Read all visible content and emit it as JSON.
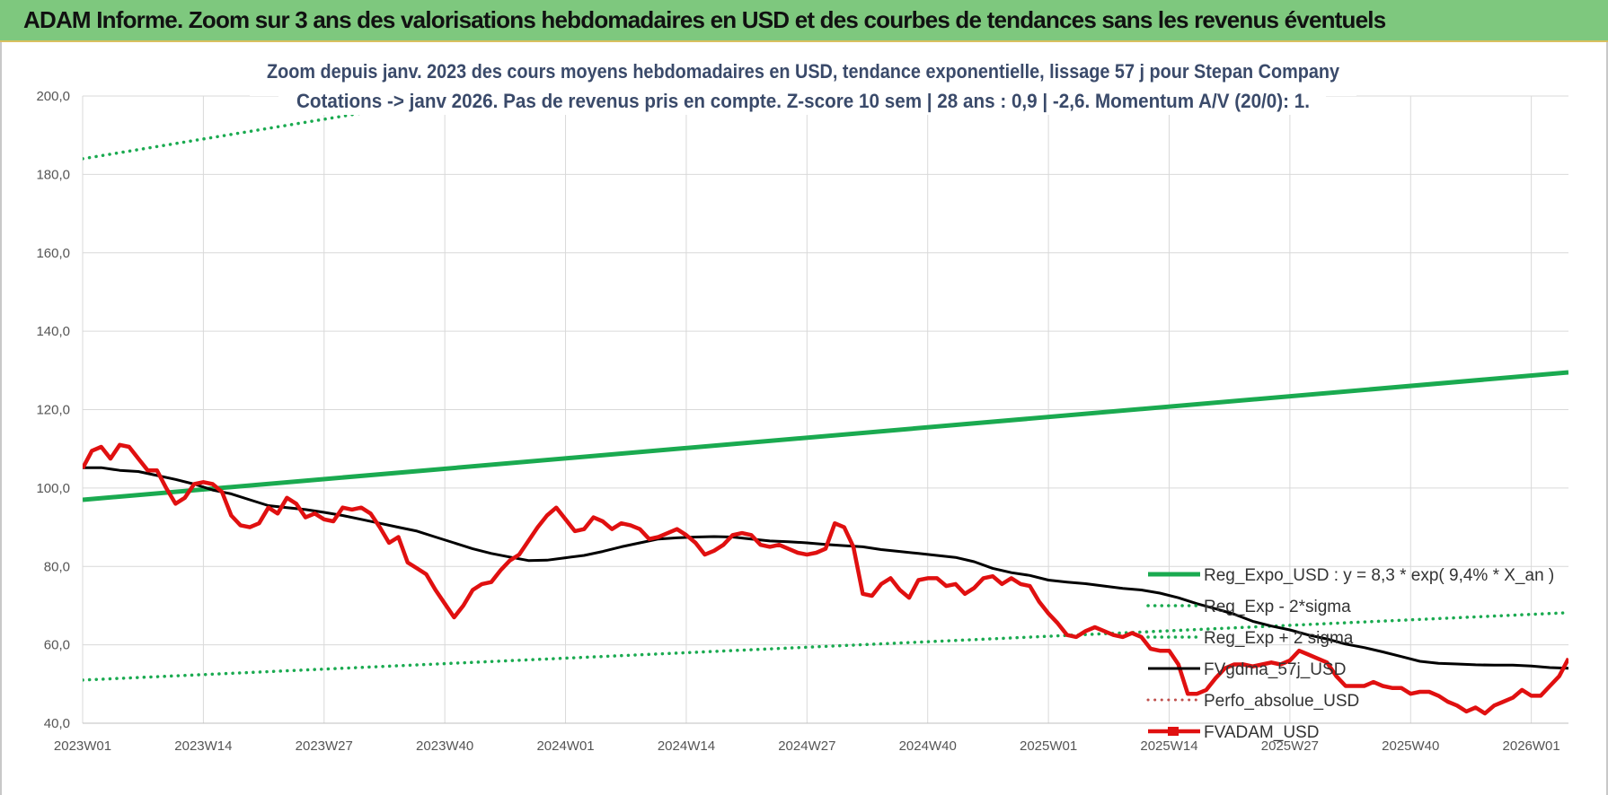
{
  "banner": {
    "title": "ADAM Informe. Zoom sur 3 ans des valorisations hebdomadaires en USD et des courbes de tendances sans les revenus éventuels"
  },
  "chart_data": {
    "type": "line",
    "title_lines": [
      "Zoom depuis janv. 2023 des cours moyens hebdomadaires en USD, tendance exponentielle, lissage 57 j pour Stepan Company",
      "Cotations -> janv 2026. Pas de revenus pris en compte. Z-score 10 sem | 28 ans : 0,9 | -2,6. Momentum A/V (20/0): 1."
    ],
    "xlabel": "",
    "ylabel": "",
    "ylim": [
      40,
      200
    ],
    "y_ticks": [
      "200,0",
      "180,0",
      "160,0",
      "140,0",
      "120,0",
      "100,0",
      "80,0",
      "60,0",
      "40,0"
    ],
    "x_week_range": [
      1,
      161
    ],
    "x_tick_labels": [
      {
        "label": "2023W01",
        "week": 1
      },
      {
        "label": "2023W14",
        "week": 14
      },
      {
        "label": "2023W27",
        "week": 27
      },
      {
        "label": "2023W40",
        "week": 40
      },
      {
        "label": "2024W01",
        "week": 53
      },
      {
        "label": "2024W14",
        "week": 66
      },
      {
        "label": "2024W27",
        "week": 79
      },
      {
        "label": "2024W40",
        "week": 92
      },
      {
        "label": "2025W01",
        "week": 105
      },
      {
        "label": "2025W14",
        "week": 118
      },
      {
        "label": "2025W27",
        "week": 131
      },
      {
        "label": "2025W40",
        "week": 144
      },
      {
        "label": "2026W01",
        "week": 157
      }
    ],
    "grid": true,
    "legend_position": "right",
    "colors": {
      "reg_expo": "#1aaa50",
      "sigma_lines": "#1aaa50",
      "fvgdma": "#000000",
      "perfo": "#c0504d",
      "fvadam": "#e01010",
      "grid": "#d9d9d9"
    },
    "series": [
      {
        "name": "Reg_Expo_USD : y = 8,3 * exp( 9,4% * X_an )",
        "style": "solid-thick",
        "points": [
          [
            1,
            97.0
          ],
          [
            161,
            129.5
          ]
        ]
      },
      {
        "name": "Reg_Exp - 2*sigma",
        "style": "dotted",
        "points": [
          [
            1,
            51.0
          ],
          [
            161,
            68.2
          ]
        ]
      },
      {
        "name": "Reg_Exp + 2 sigma",
        "style": "dotted",
        "points": [
          [
            1,
            184.0
          ],
          [
            161,
            246.0
          ]
        ]
      },
      {
        "name": "FVgdma_57j_USD",
        "style": "solid",
        "points": [
          [
            1,
            105.2
          ],
          [
            3,
            105.2
          ],
          [
            5,
            104.5
          ],
          [
            7,
            104.2
          ],
          [
            9,
            103.2
          ],
          [
            11,
            102.2
          ],
          [
            13,
            101.0
          ],
          [
            15,
            99.5
          ],
          [
            17,
            98.5
          ],
          [
            19,
            97.0
          ],
          [
            21,
            95.5
          ],
          [
            23,
            95.0
          ],
          [
            25,
            94.5
          ],
          [
            27,
            93.8
          ],
          [
            29,
            93.0
          ],
          [
            31,
            92.0
          ],
          [
            33,
            91.0
          ],
          [
            35,
            90.0
          ],
          [
            37,
            89.0
          ],
          [
            39,
            87.5
          ],
          [
            41,
            86.0
          ],
          [
            43,
            84.5
          ],
          [
            45,
            83.3
          ],
          [
            47,
            82.4
          ],
          [
            49,
            81.5
          ],
          [
            51,
            81.6
          ],
          [
            53,
            82.2
          ],
          [
            55,
            82.8
          ],
          [
            57,
            83.8
          ],
          [
            59,
            85.0
          ],
          [
            61,
            86.0
          ],
          [
            63,
            87.0
          ],
          [
            65,
            87.3
          ],
          [
            67,
            87.5
          ],
          [
            69,
            87.6
          ],
          [
            71,
            87.5
          ],
          [
            73,
            87.0
          ],
          [
            75,
            86.5
          ],
          [
            77,
            86.3
          ],
          [
            79,
            86.0
          ],
          [
            81,
            85.6
          ],
          [
            83,
            85.3
          ],
          [
            85,
            85.0
          ],
          [
            87,
            84.3
          ],
          [
            89,
            83.8
          ],
          [
            91,
            83.3
          ],
          [
            93,
            82.8
          ],
          [
            95,
            82.3
          ],
          [
            97,
            81.2
          ],
          [
            99,
            79.5
          ],
          [
            101,
            78.4
          ],
          [
            103,
            77.7
          ],
          [
            105,
            76.5
          ],
          [
            107,
            76.0
          ],
          [
            109,
            75.6
          ],
          [
            111,
            75.0
          ],
          [
            113,
            74.4
          ],
          [
            115,
            74.0
          ],
          [
            117,
            73.2
          ],
          [
            119,
            72.0
          ],
          [
            121,
            70.5
          ],
          [
            123,
            69.2
          ],
          [
            125,
            67.8
          ],
          [
            127,
            66.0
          ],
          [
            129,
            64.8
          ],
          [
            131,
            63.8
          ],
          [
            133,
            62.5
          ],
          [
            135,
            61.5
          ],
          [
            137,
            60.2
          ],
          [
            139,
            59.3
          ],
          [
            141,
            58.2
          ],
          [
            143,
            57.0
          ],
          [
            145,
            55.8
          ],
          [
            147,
            55.3
          ],
          [
            149,
            55.1
          ],
          [
            151,
            54.9
          ],
          [
            153,
            54.8
          ],
          [
            155,
            54.8
          ],
          [
            157,
            54.6
          ],
          [
            159,
            54.2
          ],
          [
            161,
            54.0
          ]
        ]
      },
      {
        "name": "Perfo_absolue_USD",
        "style": "dotted",
        "points": []
      },
      {
        "name": "FVADAM_USD",
        "style": "solid-thick",
        "points": [
          [
            1,
            105.0
          ],
          [
            2,
            109.5
          ],
          [
            3,
            110.5
          ],
          [
            4,
            107.5
          ],
          [
            5,
            111.0
          ],
          [
            6,
            110.5
          ],
          [
            7,
            107.5
          ],
          [
            8,
            104.5
          ],
          [
            9,
            104.5
          ],
          [
            10,
            100.0
          ],
          [
            11,
            96.0
          ],
          [
            12,
            97.5
          ],
          [
            13,
            101.0
          ],
          [
            14,
            101.5
          ],
          [
            15,
            101.0
          ],
          [
            16,
            99.0
          ],
          [
            17,
            93.0
          ],
          [
            18,
            90.5
          ],
          [
            19,
            90.0
          ],
          [
            20,
            91.0
          ],
          [
            21,
            95.0
          ],
          [
            22,
            93.5
          ],
          [
            23,
            97.5
          ],
          [
            24,
            96.0
          ],
          [
            25,
            92.5
          ],
          [
            26,
            93.5
          ],
          [
            27,
            92.0
          ],
          [
            28,
            91.5
          ],
          [
            29,
            95.0
          ],
          [
            30,
            94.5
          ],
          [
            31,
            95.0
          ],
          [
            32,
            93.5
          ],
          [
            33,
            90.0
          ],
          [
            34,
            86.0
          ],
          [
            35,
            87.5
          ],
          [
            36,
            81.0
          ],
          [
            37,
            79.5
          ],
          [
            38,
            78.0
          ],
          [
            39,
            74.0
          ],
          [
            40,
            70.5
          ],
          [
            41,
            67.0
          ],
          [
            42,
            70.0
          ],
          [
            43,
            74.0
          ],
          [
            44,
            75.5
          ],
          [
            45,
            76.0
          ],
          [
            46,
            79.0
          ],
          [
            47,
            81.5
          ],
          [
            48,
            83.0
          ],
          [
            49,
            86.5
          ],
          [
            50,
            90.0
          ],
          [
            51,
            93.0
          ],
          [
            52,
            95.0
          ],
          [
            53,
            92.0
          ],
          [
            54,
            89.0
          ],
          [
            55,
            89.5
          ],
          [
            56,
            92.5
          ],
          [
            57,
            91.5
          ],
          [
            58,
            89.5
          ],
          [
            59,
            91.0
          ],
          [
            60,
            90.5
          ],
          [
            61,
            89.5
          ],
          [
            62,
            87.0
          ],
          [
            63,
            87.5
          ],
          [
            64,
            88.5
          ],
          [
            65,
            89.5
          ],
          [
            66,
            88.0
          ],
          [
            67,
            86.0
          ],
          [
            68,
            83.0
          ],
          [
            69,
            84.0
          ],
          [
            70,
            85.5
          ],
          [
            71,
            88.0
          ],
          [
            72,
            88.5
          ],
          [
            73,
            88.0
          ],
          [
            74,
            85.5
          ],
          [
            75,
            85.0
          ],
          [
            76,
            85.5
          ],
          [
            77,
            84.5
          ],
          [
            78,
            83.5
          ],
          [
            79,
            83.0
          ],
          [
            80,
            83.5
          ],
          [
            81,
            84.5
          ],
          [
            82,
            91.0
          ],
          [
            83,
            90.0
          ],
          [
            84,
            85.0
          ],
          [
            85,
            73.0
          ],
          [
            86,
            72.5
          ],
          [
            87,
            75.5
          ],
          [
            88,
            77.0
          ],
          [
            89,
            74.0
          ],
          [
            90,
            72.0
          ],
          [
            91,
            76.5
          ],
          [
            92,
            77.0
          ],
          [
            93,
            77.0
          ],
          [
            94,
            75.0
          ],
          [
            95,
            75.5
          ],
          [
            96,
            73.0
          ],
          [
            97,
            74.5
          ],
          [
            98,
            77.0
          ],
          [
            99,
            77.5
          ],
          [
            100,
            75.5
          ],
          [
            101,
            77.0
          ],
          [
            102,
            75.5
          ],
          [
            103,
            75.0
          ],
          [
            104,
            71.0
          ],
          [
            105,
            68.0
          ],
          [
            106,
            65.5
          ],
          [
            107,
            62.5
          ],
          [
            108,
            62.0
          ],
          [
            109,
            63.5
          ],
          [
            110,
            64.5
          ],
          [
            111,
            63.5
          ],
          [
            112,
            62.5
          ],
          [
            113,
            62.0
          ],
          [
            114,
            63.0
          ],
          [
            115,
            62.0
          ],
          [
            116,
            59.0
          ],
          [
            117,
            58.5
          ],
          [
            118,
            58.5
          ],
          [
            119,
            55.0
          ],
          [
            120,
            47.5
          ],
          [
            121,
            47.5
          ],
          [
            122,
            48.5
          ],
          [
            123,
            51.5
          ],
          [
            124,
            54.0
          ],
          [
            125,
            55.0
          ],
          [
            126,
            55.0
          ],
          [
            127,
            54.5
          ],
          [
            128,
            55.0
          ],
          [
            129,
            55.5
          ],
          [
            130,
            55.0
          ],
          [
            131,
            56.0
          ],
          [
            132,
            58.5
          ],
          [
            133,
            57.5
          ],
          [
            134,
            56.5
          ],
          [
            135,
            55.5
          ],
          [
            136,
            52.0
          ],
          [
            137,
            49.5
          ],
          [
            138,
            49.5
          ],
          [
            139,
            49.5
          ],
          [
            140,
            50.5
          ],
          [
            141,
            49.5
          ],
          [
            142,
            49.0
          ],
          [
            143,
            49.0
          ],
          [
            144,
            47.5
          ],
          [
            145,
            48.0
          ],
          [
            146,
            48.0
          ],
          [
            147,
            47.0
          ],
          [
            148,
            45.5
          ],
          [
            149,
            44.5
          ],
          [
            150,
            43.0
          ],
          [
            151,
            44.0
          ],
          [
            152,
            42.5
          ],
          [
            153,
            44.5
          ],
          [
            154,
            45.5
          ],
          [
            155,
            46.5
          ],
          [
            156,
            48.5
          ],
          [
            157,
            47.0
          ],
          [
            158,
            47.0
          ],
          [
            159,
            49.5
          ],
          [
            160,
            52.0
          ],
          [
            161,
            56.5
          ]
        ]
      }
    ]
  }
}
